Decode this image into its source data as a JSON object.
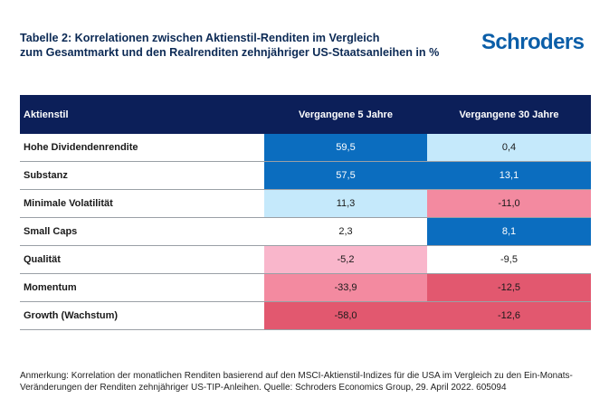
{
  "header": {
    "title_line1": "Tabelle 2: Korrelationen zwischen Aktienstil-Renditen im Vergleich",
    "title_line2": "zum Gesamtmarkt und den Realrenditen zehnjähriger US-Staatsanleihen in %",
    "logo": "Schroders"
  },
  "colors": {
    "header_bg": "#0c1f59",
    "brand": "#0b5ea8",
    "positive_strong": "#0b6dbf",
    "positive_light": "#c5e9fb",
    "negative_light": "#f9b6cb",
    "negative_medium": "#f38aa0",
    "negative_strong": "#e2586f",
    "neutral": "#ffffff"
  },
  "chart_data": {
    "type": "table",
    "columns": [
      "Aktienstil",
      "Vergangene 5 Jahre",
      "Vergangene 30 Jahre"
    ],
    "rows": [
      {
        "label": "Hohe Dividendenrendite",
        "values": [
          "59,5",
          "0,4"
        ],
        "colors": [
          "#0b6dbf",
          "#c5e9fb"
        ]
      },
      {
        "label": "Substanz",
        "values": [
          "57,5",
          "13,1"
        ],
        "colors": [
          "#0b6dbf",
          "#0b6dbf"
        ]
      },
      {
        "label": "Minimale Volatilität",
        "values": [
          "11,3",
          "-11,0"
        ],
        "colors": [
          "#c5e9fb",
          "#f38aa0"
        ]
      },
      {
        "label": "Small Caps",
        "values": [
          "2,3",
          "8,1"
        ],
        "colors": [
          "#ffffff",
          "#0b6dbf"
        ]
      },
      {
        "label": "Qualität",
        "values": [
          "-5,2",
          "-9,5"
        ],
        "colors": [
          "#f9b6cb",
          "#ffffff"
        ]
      },
      {
        "label": "Momentum",
        "values": [
          "-33,9",
          "-12,5"
        ],
        "colors": [
          "#f38aa0",
          "#e2586f"
        ]
      },
      {
        "label": "Growth (Wachstum)",
        "values": [
          "-58,0",
          "-12,6"
        ],
        "colors": [
          "#e2586f",
          "#e2586f"
        ]
      }
    ]
  },
  "footnote": {
    "line1": "Anmerkung: Korrelation der monatlichen Renditen basierend auf den MSCI-Aktienstil-Indizes für die USA im Vergleich zu den Ein-Monats-",
    "line2": "Veränderungen der Renditen zehnjähriger US-TIP-Anleihen. Quelle: Schroders Economics Group, 29. April 2022. 605094"
  }
}
